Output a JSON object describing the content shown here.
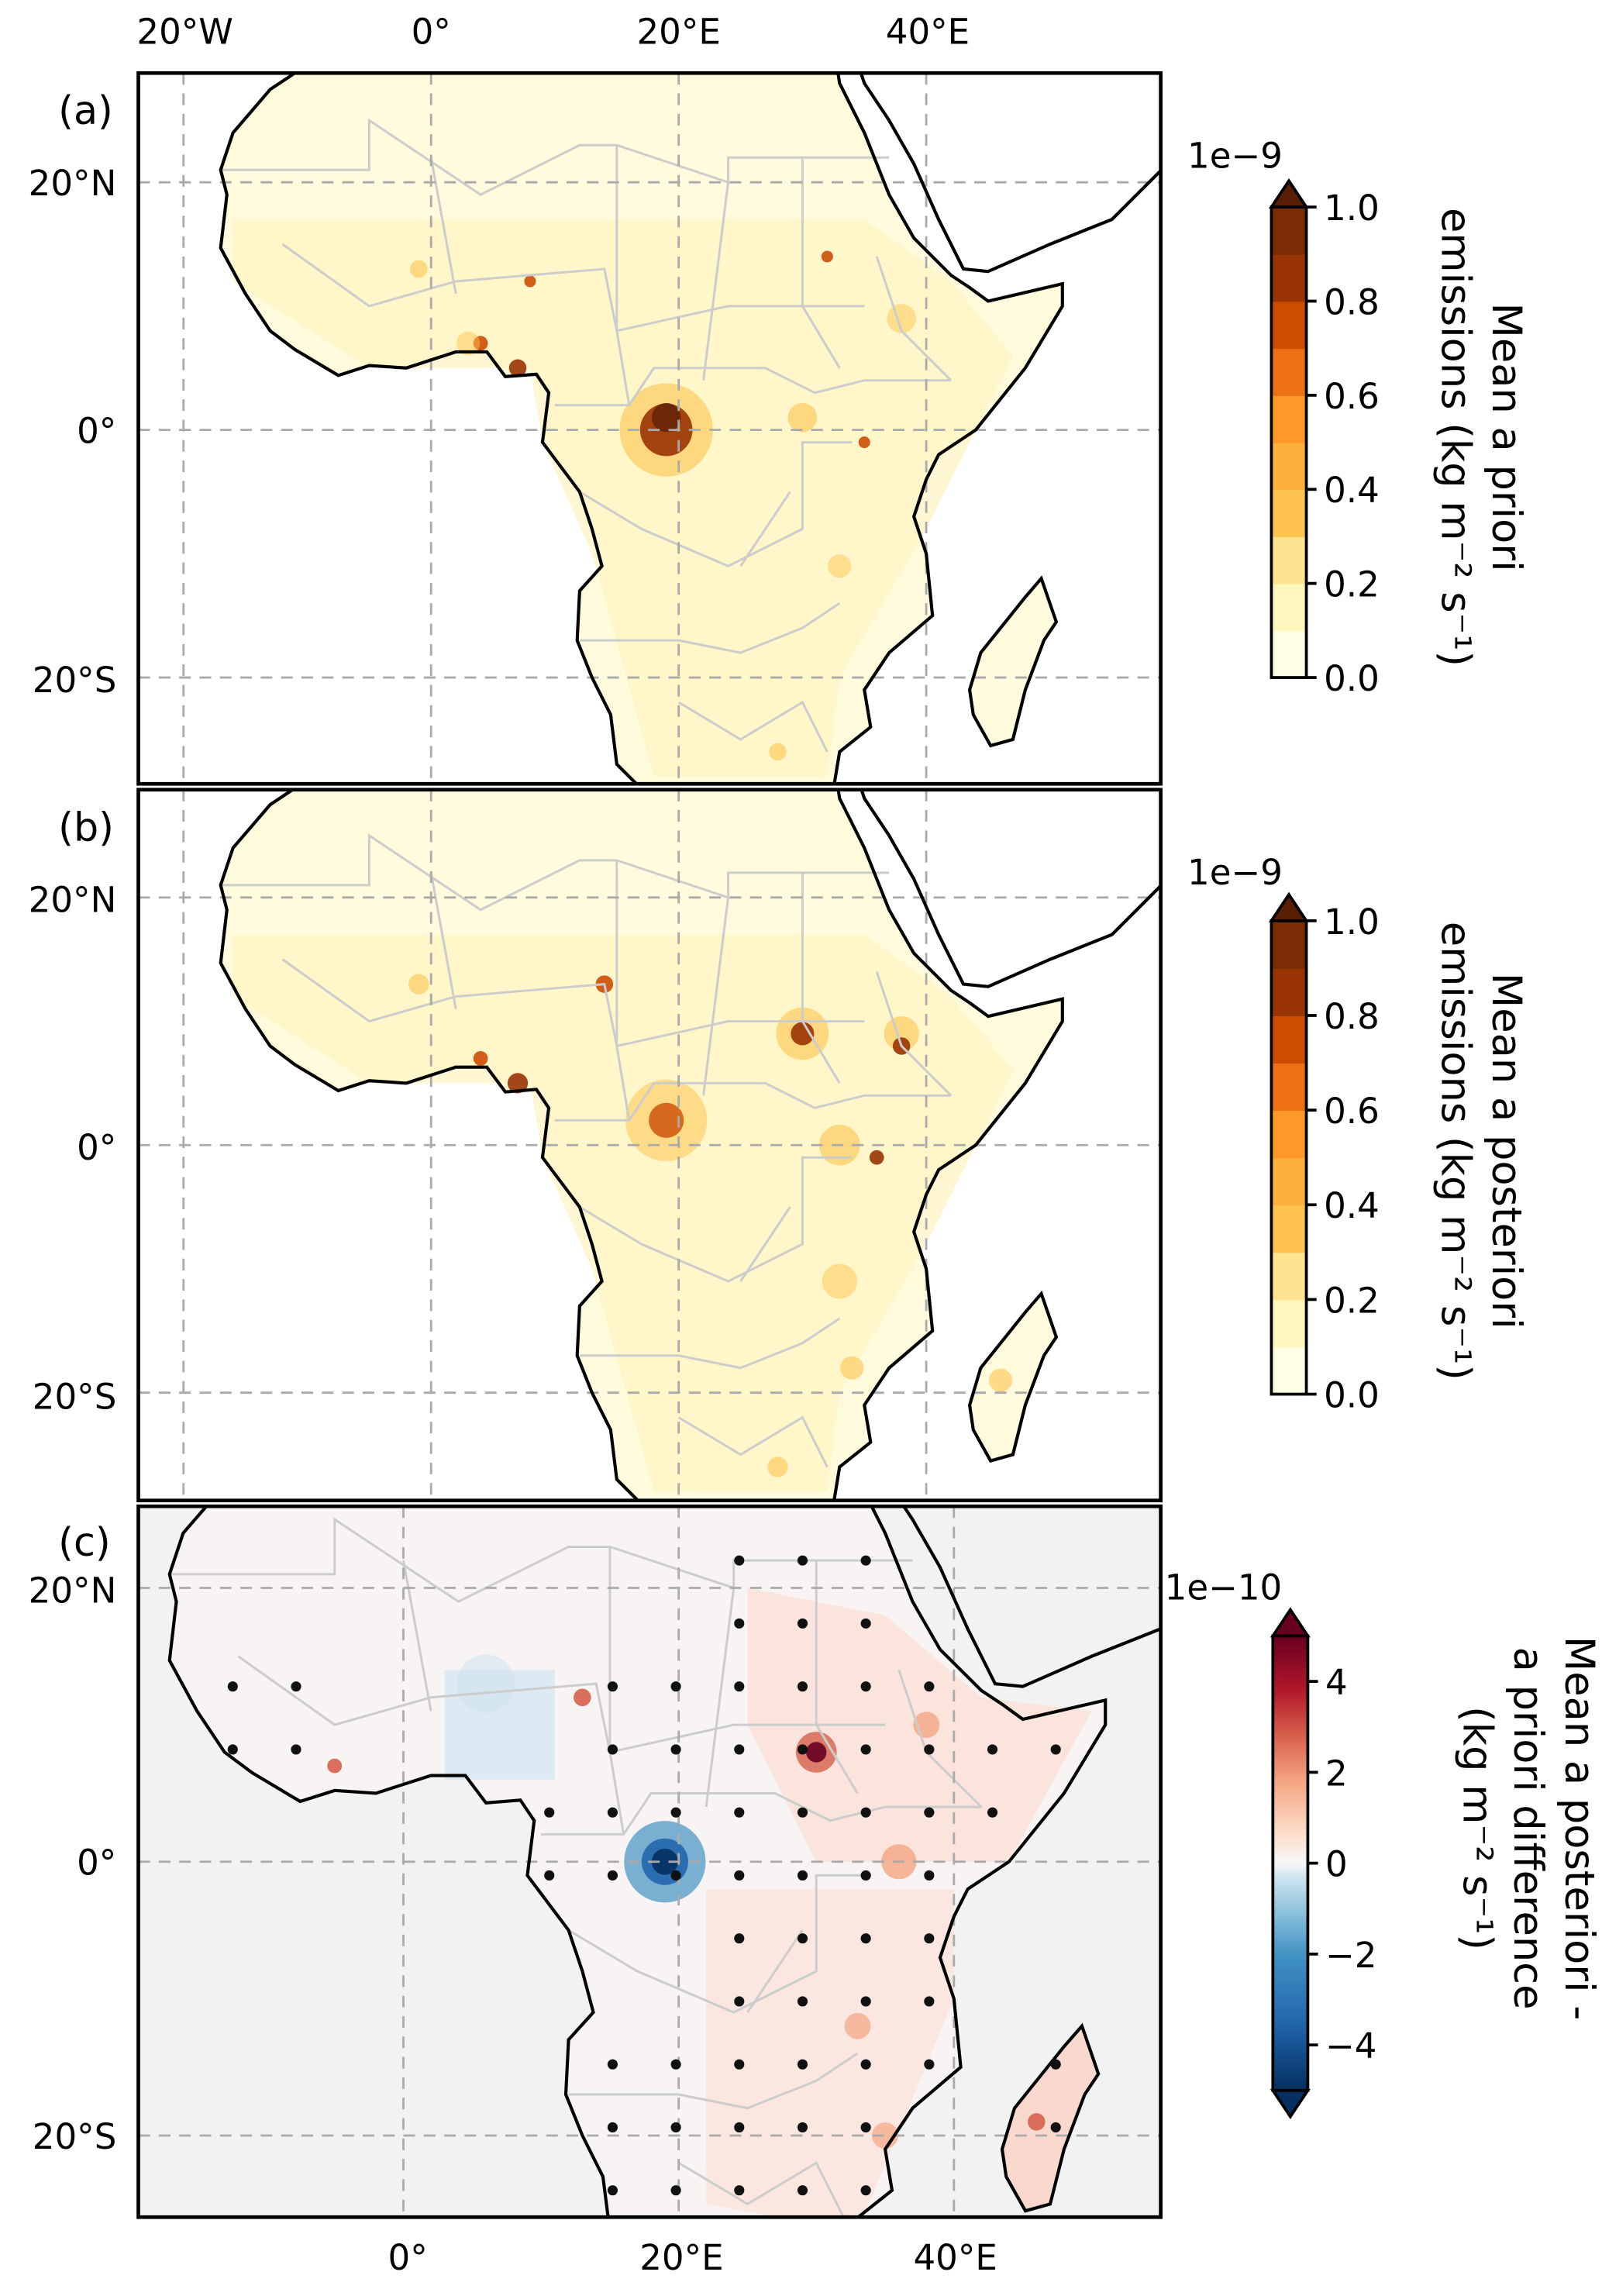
{
  "chart_data": [
    {
      "type": "heatmap",
      "panel_label": "(a)",
      "title": "",
      "lon_ticks": [
        "20°W",
        "0°",
        "20°E",
        "40°E"
      ],
      "lat_ticks": [
        "20°N",
        "0°",
        "20°S"
      ],
      "colorbar": {
        "label_lines": [
          "Mean a priori",
          "emissions (kg m⁻² s⁻¹)"
        ],
        "multiplier": "1e−9",
        "ticks": [
          "0.0",
          "0.2",
          "0.4",
          "0.6",
          "0.8",
          "1.0"
        ],
        "range": [
          0,
          1.0
        ],
        "colors": [
          "#ffffe5",
          "#fff7bc",
          "#fee391",
          "#fec44f",
          "#feb03c",
          "#fe9929",
          "#ec7014",
          "#cc4c02",
          "#993404",
          "#7a2d05"
        ]
      }
    },
    {
      "type": "heatmap",
      "panel_label": "(b)",
      "lat_ticks": [
        "20°N",
        "0°",
        "20°S"
      ],
      "colorbar": {
        "label_lines": [
          "Mean a posteriori",
          "emissions (kg m⁻² s⁻¹)"
        ],
        "multiplier": "1e−9",
        "ticks": [
          "0.0",
          "0.2",
          "0.4",
          "0.6",
          "0.8",
          "1.0"
        ],
        "range": [
          0,
          1.0
        ]
      }
    },
    {
      "type": "heatmap",
      "panel_label": "(c)",
      "lon_ticks": [
        "0°",
        "20°E",
        "40°E"
      ],
      "lat_ticks": [
        "20°N",
        "0°",
        "20°S"
      ],
      "colorbar": {
        "label_lines": [
          "Mean a posteriori -",
          "a priori difference",
          "(kg m⁻² s⁻¹)"
        ],
        "multiplier": "1e−10",
        "ticks": [
          "4",
          "2",
          "0",
          "−2",
          "−4"
        ],
        "range": [
          -5,
          5
        ]
      }
    }
  ]
}
